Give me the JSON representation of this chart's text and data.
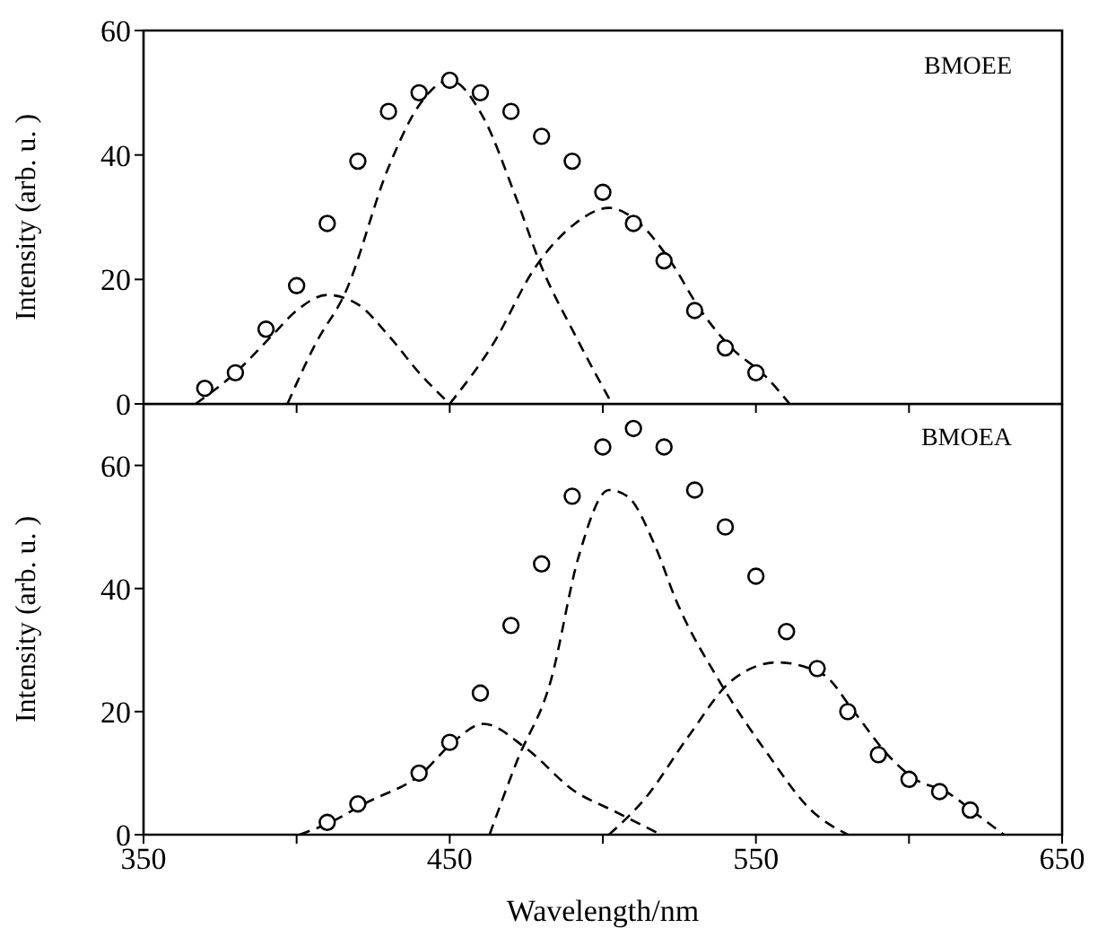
{
  "chart_data": [
    {
      "type": "scatter",
      "ylabel": "Intensity (arb. u. )",
      "annotations": [
        "BMOEE"
      ],
      "xlim": [
        350,
        650
      ],
      "ylim": [
        0,
        60
      ],
      "xticks": [
        {
          "value": 350,
          "label": null
        },
        {
          "value": 400,
          "label": null
        },
        {
          "value": 450,
          "label": null
        },
        {
          "value": 500,
          "label": null
        },
        {
          "value": 550,
          "label": null
        },
        {
          "value": 600,
          "label": null
        },
        {
          "value": 650,
          "label": null
        }
      ],
      "yticks": [
        0,
        20,
        40,
        60
      ],
      "tick_labels": "y",
      "series": [
        {
          "marker": "circle",
          "color": "#000000",
          "x": [
            370,
            380,
            390,
            400,
            410,
            420,
            430,
            440,
            450,
            460,
            470,
            480,
            490,
            500,
            510,
            520,
            530,
            540,
            550
          ],
          "values": [
            2.5,
            5,
            12,
            19,
            29,
            39,
            47,
            50,
            52,
            50,
            47,
            43,
            39,
            34,
            29,
            23,
            15,
            9,
            5
          ]
        },
        {
          "type": "line",
          "line_style": "dashed",
          "color": "#000000",
          "x": [
            367,
            380,
            392,
            400,
            410,
            420,
            430,
            440,
            450
          ],
          "values": [
            0,
            5,
            11,
            15,
            17.5,
            16,
            11,
            5,
            0
          ]
        },
        {
          "type": "line",
          "line_style": "dashed",
          "color": "#000000",
          "x": [
            397,
            406,
            416,
            430,
            440,
            450,
            461,
            471,
            480,
            491,
            503
          ],
          "values": [
            0,
            9.5,
            18,
            38,
            48,
            52,
            46,
            34,
            22,
            11,
            0
          ]
        },
        {
          "type": "line",
          "line_style": "dashed",
          "color": "#000000",
          "x": [
            450,
            464,
            478,
            491,
            502,
            512,
            522,
            532,
            542,
            553,
            561
          ],
          "values": [
            0,
            9.5,
            22,
            29,
            31.5,
            29,
            23,
            15,
            9,
            4.5,
            0
          ]
        }
      ]
    },
    {
      "type": "scatter",
      "xlabel": "Wavelength/nm",
      "ylabel": "Intensity (arb. u. )",
      "annotations": [
        "BMOEA"
      ],
      "xlim": [
        350,
        650
      ],
      "ylim": [
        0,
        70
      ],
      "xticks": [
        350,
        {
          "value": 400,
          "label": null
        },
        450,
        {
          "value": 500,
          "label": null
        },
        550,
        {
          "value": 600,
          "label": null
        },
        650
      ],
      "yticks": [
        0,
        20,
        40,
        60
      ],
      "series": [
        {
          "marker": "circle",
          "color": "#000000",
          "x": [
            410,
            420,
            440,
            450,
            460,
            470,
            480,
            490,
            500,
            510,
            520,
            530,
            540,
            550,
            560,
            570,
            580,
            590,
            600,
            610,
            620
          ],
          "values": [
            2,
            5,
            10,
            15,
            23,
            34,
            44,
            55,
            63,
            66,
            63,
            56,
            50,
            42,
            33,
            27,
            20,
            13,
            9,
            7,
            4
          ]
        },
        {
          "type": "line",
          "line_style": "dashed",
          "color": "#000000",
          "x": [
            401,
            411,
            422,
            441,
            451,
            461,
            475,
            491,
            503,
            519
          ],
          "values": [
            0,
            2,
            5,
            10,
            15,
            18,
            14,
            7,
            4,
            0
          ]
        },
        {
          "type": "line",
          "line_style": "dashed",
          "color": "#000000",
          "x": [
            463,
            472,
            483,
            492,
            502,
            508,
            517,
            524,
            538,
            554,
            568,
            580
          ],
          "values": [
            0,
            12,
            25,
            45,
            56,
            55,
            47,
            38,
            25,
            13,
            4,
            0
          ]
        },
        {
          "type": "line",
          "line_style": "dashed",
          "color": "#000000",
          "x": [
            502,
            514,
            528,
            542,
            557,
            572,
            582,
            593,
            602,
            612,
            623,
            631
          ],
          "values": [
            0,
            6,
            16,
            25,
            28,
            26,
            20,
            13,
            9,
            7,
            3,
            0
          ]
        }
      ]
    }
  ]
}
